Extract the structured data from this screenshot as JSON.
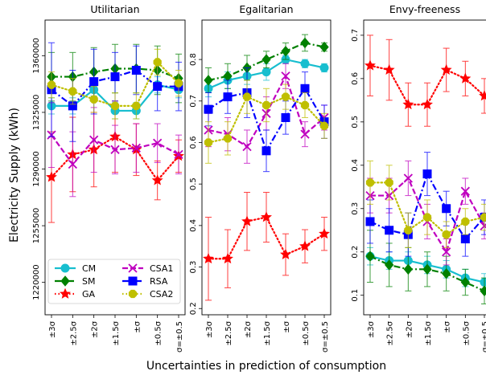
{
  "figure": {
    "ylabel": "Electricity Supply (kWh)",
    "xlabel": "Uncertainties in prediction of consumption"
  },
  "legend": {
    "position": "lower-left of first panel",
    "entries": [
      "CM",
      "SM",
      "GA",
      "CSA1",
      "RSA",
      "CSA2"
    ]
  },
  "series_style": {
    "CM": {
      "color": "#17becf",
      "marker": "circle",
      "dash": "solid"
    },
    "SM": {
      "color": "#008000",
      "marker": "diamond",
      "dash": "dashdot"
    },
    "GA": {
      "color": "#ff0000",
      "marker": "star",
      "dash": "dotted"
    },
    "CSA1": {
      "color": "#bf00bf",
      "marker": "x",
      "dash": "dashed"
    },
    "RSA": {
      "color": "#0000ff",
      "marker": "square",
      "dash": "dashdot"
    },
    "CSA2": {
      "color": "#bfbf00",
      "marker": "octagon",
      "dash": "dotted"
    }
  },
  "chart_data": [
    {
      "type": "line",
      "title": "Utilitarian",
      "categories": [
        "±3σ",
        "±2.5σ",
        "±2σ",
        "±1.5σ",
        "±σ",
        "±0.5σ",
        "σ=±0.5"
      ],
      "ylim": [
        1200000,
        1382000
      ],
      "yticks": [
        1220000,
        1255000,
        1290000,
        1325000,
        1360000
      ],
      "ytick_labels": [
        "1220000",
        "1255000",
        "1290000",
        "1325000",
        "1360000"
      ],
      "ytick_rotation": "vertical",
      "series": [
        {
          "name": "CM",
          "values": [
            1329000,
            1329000,
            1339000,
            1326000,
            1326000,
            1342000,
            1339000
          ],
          "errors": [
            5000,
            5000,
            5000,
            5000,
            5000,
            5000,
            5000
          ]
        },
        {
          "name": "SM",
          "values": [
            1347000,
            1347000,
            1350000,
            1352000,
            1352000,
            1351000,
            1346000
          ],
          "errors": [
            15000,
            15000,
            15000,
            15000,
            15000,
            15000,
            15000
          ]
        },
        {
          "name": "GA",
          "values": [
            1285000,
            1299000,
            1302000,
            1310000,
            1302000,
            1283000,
            1298000
          ],
          "errors": [
            28000,
            23000,
            23000,
            22000,
            16000,
            12000,
            10000
          ]
        },
        {
          "name": "CSA1",
          "values": [
            1311000,
            1293000,
            1308000,
            1302000,
            1303000,
            1306000,
            1299000
          ],
          "errors": [
            20000,
            20000,
            20000,
            15000,
            15000,
            12000,
            12000
          ]
        },
        {
          "name": "RSA",
          "values": [
            1339000,
            1329000,
            1344000,
            1347000,
            1351000,
            1341000,
            1341000
          ],
          "errors": [
            29000,
            22000,
            20000,
            15000,
            15000,
            15000,
            15000
          ]
        },
        {
          "name": "CSA2",
          "values": [
            1342000,
            1338000,
            1333000,
            1329000,
            1329000,
            1356000,
            1343000
          ],
          "errors": [
            8000,
            8000,
            8000,
            8000,
            8000,
            8000,
            8000
          ]
        }
      ]
    },
    {
      "type": "line",
      "title": "Egalitarian",
      "categories": [
        "±3σ",
        "±2.5σ",
        "±2σ",
        "±1.5σ",
        "±σ",
        "±0.5σ",
        "σ=±0.5"
      ],
      "ylim": [
        0.185,
        0.895
      ],
      "yticks": [
        0.2,
        0.3,
        0.4,
        0.5,
        0.6,
        0.7,
        0.8
      ],
      "ytick_labels": [
        "0.2",
        "0.3",
        "0.4",
        "0.5",
        "0.6",
        "0.7",
        "0.8"
      ],
      "ytick_rotation": "vertical",
      "series": [
        {
          "name": "CM",
          "values": [
            0.73,
            0.75,
            0.76,
            0.77,
            0.8,
            0.79,
            0.78
          ],
          "errors": [
            0.02,
            0.02,
            0.02,
            0.02,
            0.01,
            0.01,
            0.01
          ]
        },
        {
          "name": "SM",
          "values": [
            0.75,
            0.76,
            0.78,
            0.8,
            0.82,
            0.84,
            0.83
          ],
          "errors": [
            0.03,
            0.03,
            0.03,
            0.02,
            0.02,
            0.02,
            0.01
          ]
        },
        {
          "name": "GA",
          "values": [
            0.32,
            0.32,
            0.41,
            0.42,
            0.33,
            0.35,
            0.38
          ],
          "errors": [
            0.1,
            0.07,
            0.07,
            0.06,
            0.05,
            0.04,
            0.04
          ]
        },
        {
          "name": "CSA1",
          "values": [
            0.63,
            0.62,
            0.59,
            0.67,
            0.76,
            0.62,
            0.66
          ],
          "errors": [
            0.04,
            0.04,
            0.04,
            0.04,
            0.03,
            0.03,
            0.03
          ]
        },
        {
          "name": "RSA",
          "values": [
            0.68,
            0.71,
            0.72,
            0.58,
            0.66,
            0.73,
            0.65
          ],
          "errors": [
            0.04,
            0.04,
            0.06,
            0.05,
            0.04,
            0.04,
            0.04
          ]
        },
        {
          "name": "CSA2",
          "values": [
            0.6,
            0.61,
            0.71,
            0.69,
            0.71,
            0.69,
            0.64
          ],
          "errors": [
            0.05,
            0.04,
            0.04,
            0.04,
            0.03,
            0.03,
            0.03
          ]
        }
      ]
    },
    {
      "type": "line",
      "title": "Envy-freeness",
      "categories": [
        "±3σ",
        "±2.5σ",
        "±2σ",
        "±1.5σ",
        "±σ",
        "±0.5σ",
        "σ=±0.5"
      ],
      "ylim": [
        0.055,
        0.735
      ],
      "yticks": [
        0.1,
        0.2,
        0.3,
        0.4,
        0.5,
        0.6,
        0.7
      ],
      "ytick_labels": [
        "0.1",
        "0.2",
        "0.3",
        "0.4",
        "0.5",
        "0.6",
        "0.7"
      ],
      "ytick_rotation": "vertical",
      "series": [
        {
          "name": "CM",
          "values": [
            0.19,
            0.18,
            0.18,
            0.17,
            0.16,
            0.14,
            0.13
          ],
          "errors": [
            0.02,
            0.02,
            0.02,
            0.02,
            0.02,
            0.02,
            0.02
          ]
        },
        {
          "name": "SM",
          "values": [
            0.19,
            0.17,
            0.16,
            0.16,
            0.15,
            0.13,
            0.11
          ],
          "errors": [
            0.06,
            0.05,
            0.05,
            0.04,
            0.04,
            0.03,
            0.03
          ]
        },
        {
          "name": "GA",
          "values": [
            0.63,
            0.62,
            0.54,
            0.54,
            0.62,
            0.6,
            0.56
          ],
          "errors": [
            0.07,
            0.07,
            0.05,
            0.05,
            0.05,
            0.04,
            0.04
          ]
        },
        {
          "name": "CSA1",
          "values": [
            0.33,
            0.33,
            0.37,
            0.27,
            0.2,
            0.34,
            0.26
          ],
          "errors": [
            0.04,
            0.04,
            0.04,
            0.04,
            0.03,
            0.03,
            0.03
          ]
        },
        {
          "name": "RSA",
          "values": [
            0.27,
            0.25,
            0.24,
            0.38,
            0.3,
            0.23,
            0.28
          ],
          "errors": [
            0.05,
            0.05,
            0.05,
            0.05,
            0.04,
            0.04,
            0.04
          ]
        },
        {
          "name": "CSA2",
          "values": [
            0.36,
            0.36,
            0.25,
            0.28,
            0.24,
            0.27,
            0.28
          ],
          "errors": [
            0.05,
            0.04,
            0.04,
            0.04,
            0.03,
            0.03,
            0.03
          ]
        }
      ]
    }
  ]
}
